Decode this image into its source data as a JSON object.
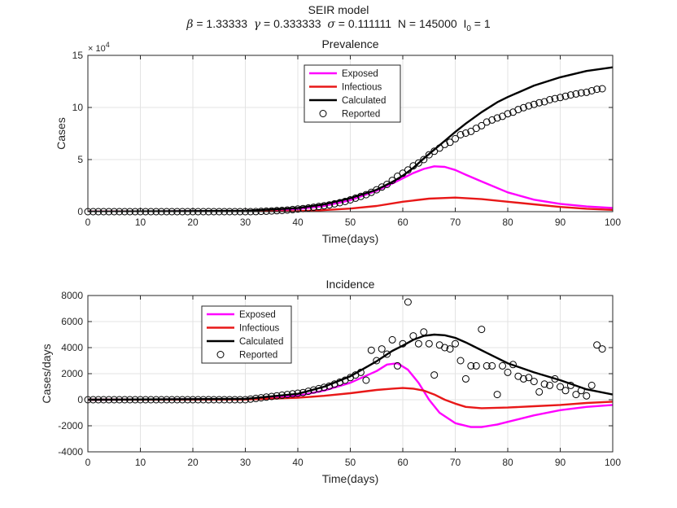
{
  "figure": {
    "suptitle": "SEIR model",
    "params": {
      "beta_symbol": "β",
      "beta": "1.33333",
      "gamma_symbol": "γ",
      "gamma": "0.333333",
      "sigma_symbol": "σ",
      "sigma": "0.111111",
      "N_label": "N",
      "N": "145000",
      "I0_label": "I",
      "I0_sub": "0",
      "I0": "1"
    },
    "colors": {
      "exposed": "#ff00ff",
      "infectious": "#e81818",
      "calculated": "#000000",
      "reported": "#000000",
      "grid": "#e3e3e3",
      "axis": "#262626"
    }
  },
  "chart_data": [
    {
      "type": "line",
      "title": "Prevalence",
      "xlabel": "Time(days)",
      "ylabel": "Cases",
      "y_exponent_label": "× 10",
      "y_exponent_power": "4",
      "xlim": [
        0,
        100
      ],
      "ylim": [
        0,
        150000
      ],
      "xticks": [
        0,
        10,
        20,
        30,
        40,
        50,
        60,
        70,
        80,
        90,
        100
      ],
      "xtick_labels": [
        "0",
        "10",
        "20",
        "30",
        "40",
        "50",
        "60",
        "70",
        "80",
        "90",
        "100"
      ],
      "yticks": [
        0,
        50000,
        100000,
        150000
      ],
      "ytick_labels": [
        "0",
        "5",
        "10",
        "15"
      ],
      "grid": true,
      "legend_position": "top-center",
      "legend": [
        "Exposed",
        "Infectious",
        "Calculated",
        "Reported"
      ],
      "series": [
        {
          "name": "Exposed",
          "style": "line",
          "color": "#ff00ff",
          "x": [
            0,
            30,
            40,
            45,
            50,
            55,
            58,
            60,
            62,
            64,
            66,
            68,
            70,
            72,
            75,
            80,
            85,
            90,
            95,
            100
          ],
          "y": [
            0,
            600,
            2500,
            5500,
            11000,
            20000,
            27000,
            32000,
            37000,
            41000,
            43500,
            43000,
            40000,
            35500,
            29000,
            18500,
            11500,
            7500,
            5000,
            3500
          ]
        },
        {
          "name": "Infectious",
          "style": "line",
          "color": "#e81818",
          "x": [
            0,
            40,
            45,
            50,
            55,
            60,
            65,
            70,
            75,
            80,
            85,
            90,
            95,
            100
          ],
          "y": [
            0,
            400,
            1500,
            3000,
            5500,
            9500,
            12500,
            13500,
            12000,
            9500,
            7000,
            4500,
            2800,
            1700
          ]
        },
        {
          "name": "Calculated",
          "style": "line",
          "color": "#000000",
          "x": [
            0,
            30,
            40,
            45,
            50,
            55,
            58,
            60,
            62,
            64,
            66,
            68,
            70,
            72,
            75,
            78,
            80,
            85,
            90,
            95,
            100
          ],
          "y": [
            0,
            800,
            3500,
            7000,
            13000,
            21000,
            28500,
            34500,
            42000,
            51000,
            59500,
            68000,
            76500,
            84500,
            95500,
            105000,
            110000,
            121000,
            129000,
            135000,
            138500
          ]
        },
        {
          "name": "Reported",
          "style": "markers",
          "marker": "circle",
          "color": "#000000",
          "x": [
            0,
            1,
            2,
            3,
            4,
            5,
            6,
            7,
            8,
            9,
            10,
            11,
            12,
            13,
            14,
            15,
            16,
            17,
            18,
            19,
            20,
            21,
            22,
            23,
            24,
            25,
            26,
            27,
            28,
            29,
            30,
            31,
            32,
            33,
            34,
            35,
            36,
            37,
            38,
            39,
            40,
            41,
            42,
            43,
            44,
            45,
            46,
            47,
            48,
            49,
            50,
            51,
            52,
            53,
            54,
            55,
            56,
            57,
            58,
            59,
            60,
            61,
            62,
            63,
            64,
            65,
            66,
            67,
            68,
            69,
            70,
            71,
            72,
            73,
            74,
            75,
            76,
            77,
            78,
            79,
            80,
            81,
            82,
            83,
            84,
            85,
            86,
            87,
            88,
            89,
            90,
            91,
            92,
            93,
            94,
            95,
            96,
            97,
            98
          ],
          "y": [
            1,
            0,
            0,
            0,
            0,
            0,
            0,
            0,
            0,
            0,
            0,
            0,
            0,
            0,
            0,
            0,
            0,
            0,
            0,
            0,
            0,
            0,
            0,
            0,
            0,
            0,
            0,
            0,
            0,
            0,
            0,
            0,
            100,
            300,
            500,
            700,
            900,
            1200,
            1600,
            2000,
            2500,
            3000,
            3500,
            4200,
            5000,
            5700,
            6500,
            7500,
            8600,
            9800,
            11300,
            13000,
            14600,
            16300,
            18500,
            21000,
            23600,
            26200,
            30000,
            34000,
            36900,
            40000,
            44000,
            46700,
            50000,
            54600,
            58000,
            61000,
            64500,
            66600,
            70000,
            73800,
            75400,
            77000,
            80000,
            82500,
            86000,
            88000,
            89900,
            91500,
            94000,
            95500,
            98000,
            99800,
            101500,
            103000,
            104500,
            105500,
            107400,
            108500,
            109500,
            110800,
            112000,
            113000,
            114000,
            114500,
            116000,
            117500,
            118000
          ]
        }
      ]
    },
    {
      "type": "line",
      "title": "Incidence",
      "xlabel": "Time(days)",
      "ylabel": "Cases/days",
      "xlim": [
        0,
        100
      ],
      "ylim": [
        -4000,
        8000
      ],
      "xticks": [
        0,
        10,
        20,
        30,
        40,
        50,
        60,
        70,
        80,
        90,
        100
      ],
      "xtick_labels": [
        "0",
        "10",
        "20",
        "30",
        "40",
        "50",
        "60",
        "70",
        "80",
        "90",
        "100"
      ],
      "yticks": [
        -4000,
        -2000,
        0,
        2000,
        4000,
        6000,
        8000
      ],
      "ytick_labels": [
        "-4000",
        "-2000",
        "0",
        "2000",
        "4000",
        "6000",
        "8000"
      ],
      "grid": true,
      "legend_position": "top-left",
      "legend": [
        "Exposed",
        "Infectious",
        "Calculated",
        "Reported"
      ],
      "series": [
        {
          "name": "Exposed",
          "style": "line",
          "color": "#ff00ff",
          "x": [
            0,
            30,
            40,
            45,
            50,
            55,
            57,
            59,
            61,
            63,
            65,
            67,
            70,
            73,
            75,
            78,
            80,
            85,
            90,
            95,
            100
          ],
          "y": [
            0,
            50,
            300,
            700,
            1300,
            2200,
            2700,
            2800,
            2300,
            1300,
            0,
            -1000,
            -1800,
            -2100,
            -2100,
            -1900,
            -1700,
            -1200,
            -800,
            -550,
            -400
          ]
        },
        {
          "name": "Infectious",
          "style": "line",
          "color": "#e81818",
          "x": [
            0,
            30,
            40,
            45,
            50,
            55,
            58,
            60,
            62,
            64,
            66,
            68,
            70,
            72,
            75,
            80,
            85,
            90,
            95,
            100
          ],
          "y": [
            0,
            20,
            150,
            300,
            500,
            750,
            850,
            900,
            850,
            700,
            400,
            0,
            -300,
            -550,
            -650,
            -600,
            -500,
            -400,
            -250,
            -150
          ]
        },
        {
          "name": "Calculated",
          "style": "line",
          "color": "#000000",
          "x": [
            0,
            30,
            40,
            45,
            50,
            55,
            58,
            60,
            62,
            64,
            66,
            68,
            70,
            72,
            74,
            76,
            80,
            85,
            90,
            95,
            100
          ],
          "y": [
            0,
            70,
            450,
            1000,
            1800,
            2950,
            3750,
            4150,
            4600,
            4900,
            5000,
            4950,
            4750,
            4400,
            4000,
            3600,
            2800,
            2100,
            1500,
            800,
            400
          ]
        },
        {
          "name": "Reported",
          "style": "markers",
          "marker": "circle",
          "color": "#000000",
          "x": [
            0,
            1,
            2,
            3,
            4,
            5,
            6,
            7,
            8,
            9,
            10,
            11,
            12,
            13,
            14,
            15,
            16,
            17,
            18,
            19,
            20,
            21,
            22,
            23,
            24,
            25,
            26,
            27,
            28,
            29,
            30,
            31,
            32,
            33,
            34,
            35,
            36,
            37,
            38,
            39,
            40,
            41,
            42,
            43,
            44,
            45,
            46,
            47,
            48,
            49,
            50,
            51,
            52,
            53,
            54,
            55,
            56,
            57,
            58,
            59,
            60,
            61,
            62,
            63,
            64,
            65,
            66,
            67,
            68,
            69,
            70,
            71,
            72,
            73,
            74,
            75,
            76,
            77,
            78,
            79,
            80,
            81,
            82,
            83,
            84,
            85,
            86,
            87,
            88,
            89,
            90,
            91,
            92,
            93,
            94,
            95,
            96,
            97,
            98
          ],
          "y": [
            0,
            0,
            0,
            0,
            0,
            0,
            0,
            0,
            0,
            0,
            0,
            0,
            0,
            0,
            0,
            0,
            0,
            0,
            0,
            0,
            0,
            0,
            0,
            0,
            0,
            0,
            0,
            0,
            0,
            0,
            0,
            50,
            100,
            150,
            200,
            250,
            300,
            350,
            400,
            450,
            500,
            550,
            650,
            750,
            850,
            950,
            1050,
            1200,
            1350,
            1500,
            1700,
            1900,
            2100,
            1500,
            3800,
            3000,
            3900,
            3500,
            4600,
            2600,
            4300,
            7500,
            4900,
            4300,
            5200,
            4300,
            1900,
            4200,
            4000,
            3900,
            4300,
            3000,
            1600,
            2600,
            2600,
            5400,
            2600,
            2600,
            400,
            2600,
            2100,
            2700,
            1800,
            1600,
            1700,
            1400,
            600,
            1200,
            1100,
            1600,
            1000,
            700,
            1100,
            400,
            700,
            300,
            1100,
            4200,
            3900
          ]
        }
      ]
    }
  ]
}
